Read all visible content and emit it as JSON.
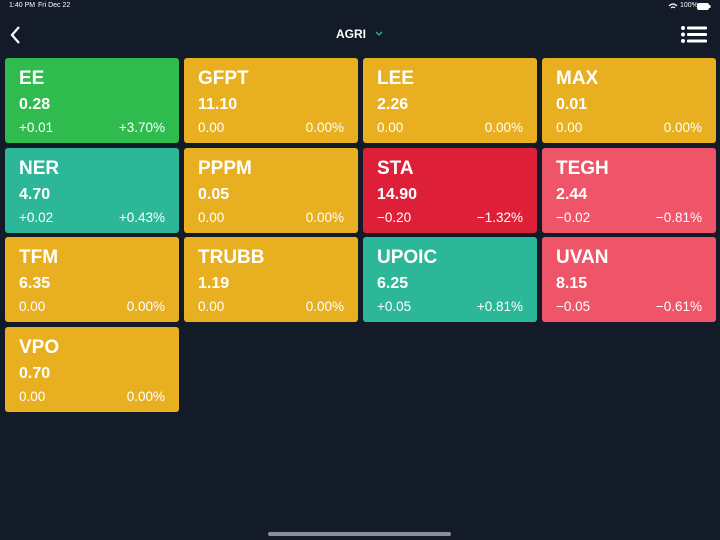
{
  "status_bar": {
    "time": "1:40 PM",
    "date": "Fri Dec 22",
    "battery": "100%"
  },
  "header": {
    "title": "AGRI"
  },
  "tiles": [
    {
      "symbol": "EE",
      "price": "0.28",
      "change": "+0.01",
      "percent": "+3.70%",
      "color": "#2fbb4e"
    },
    {
      "symbol": "GFPT",
      "price": "11.10",
      "change": "0.00",
      "percent": "0.00%",
      "color": "#e8b021"
    },
    {
      "symbol": "LEE",
      "price": "2.26",
      "change": "0.00",
      "percent": "0.00%",
      "color": "#e8b021"
    },
    {
      "symbol": "MAX",
      "price": "0.01",
      "change": "0.00",
      "percent": "0.00%",
      "color": "#e8b021"
    },
    {
      "symbol": "NER",
      "price": "4.70",
      "change": "+0.02",
      "percent": "+0.43%",
      "color": "#2cb898"
    },
    {
      "symbol": "PPPM",
      "price": "0.05",
      "change": "0.00",
      "percent": "0.00%",
      "color": "#e8b021"
    },
    {
      "symbol": "STA",
      "price": "14.90",
      "change": "−0.20",
      "percent": "−1.32%",
      "color": "#dd2038"
    },
    {
      "symbol": "TEGH",
      "price": "2.44",
      "change": "−0.02",
      "percent": "−0.81%",
      "color": "#ef5568"
    },
    {
      "symbol": "TFM",
      "price": "6.35",
      "change": "0.00",
      "percent": "0.00%",
      "color": "#e8b021"
    },
    {
      "symbol": "TRUBB",
      "price": "1.19",
      "change": "0.00",
      "percent": "0.00%",
      "color": "#e8b021"
    },
    {
      "symbol": "UPOIC",
      "price": "6.25",
      "change": "+0.05",
      "percent": "+0.81%",
      "color": "#2cb898"
    },
    {
      "symbol": "UVAN",
      "price": "8.15",
      "change": "−0.05",
      "percent": "−0.61%",
      "color": "#ef5568"
    },
    {
      "symbol": "VPO",
      "price": "0.70",
      "change": "0.00",
      "percent": "0.00%",
      "color": "#e8b021"
    }
  ]
}
